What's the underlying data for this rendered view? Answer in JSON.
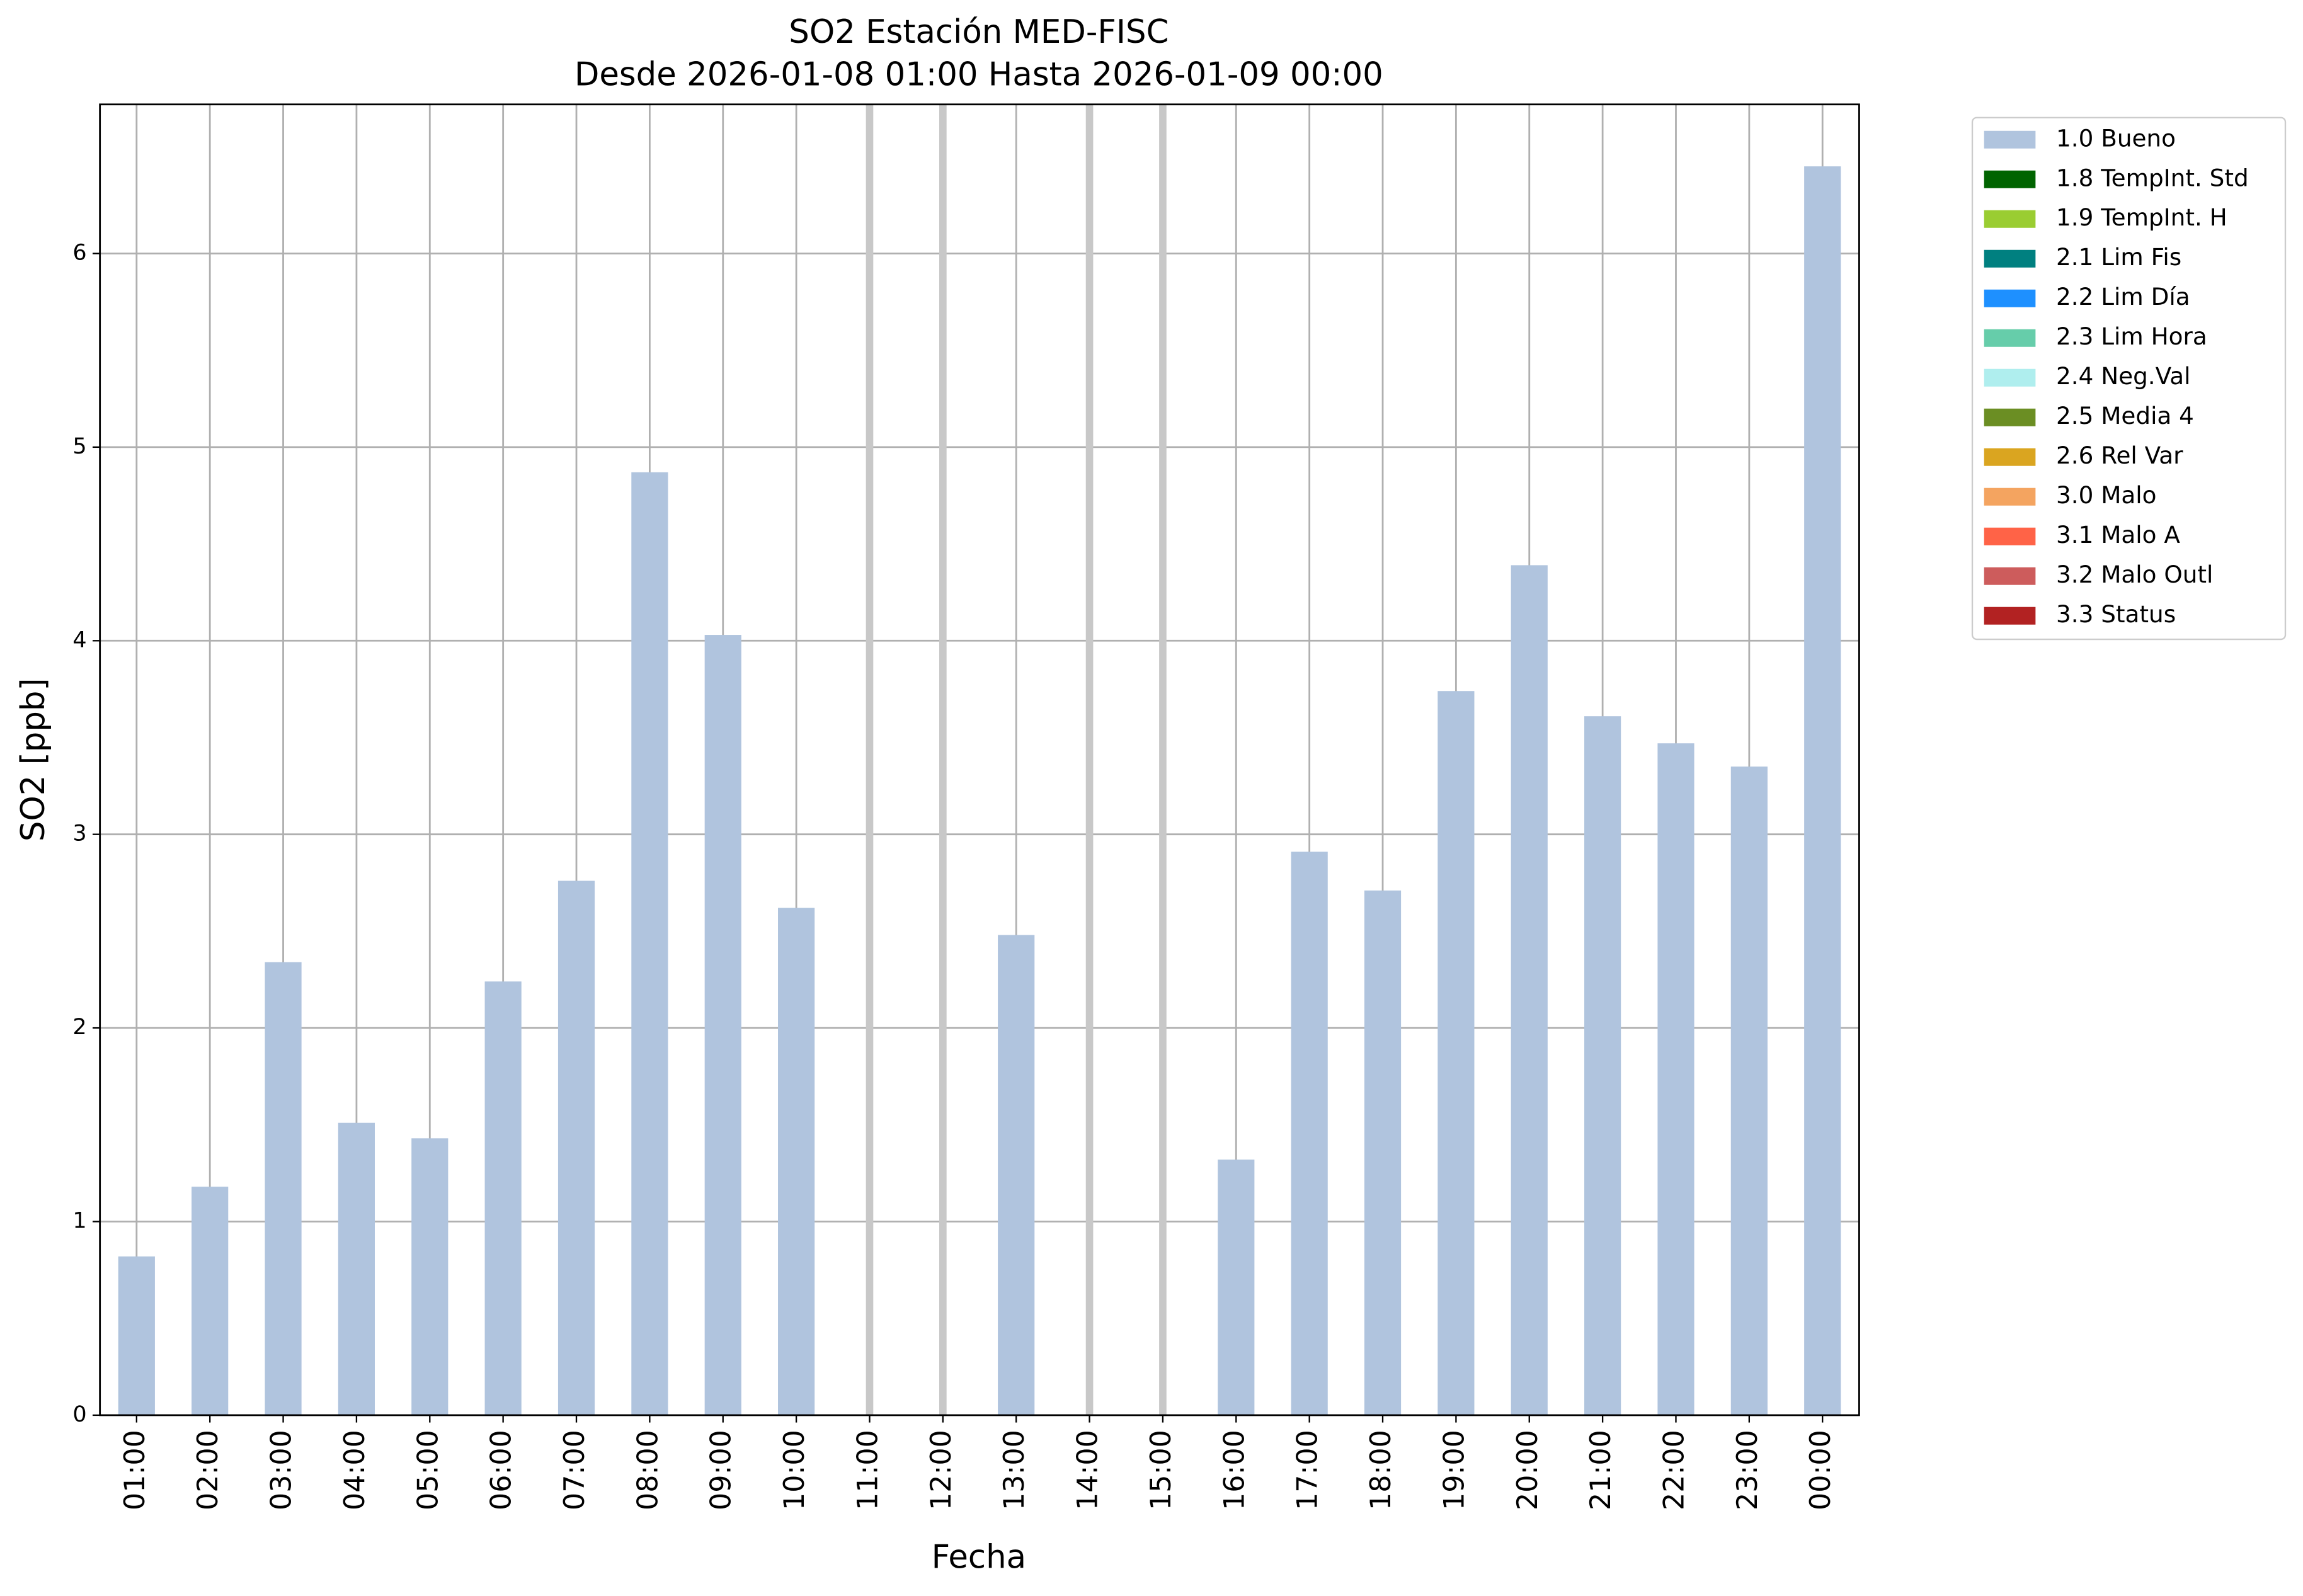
{
  "chart_data": {
    "type": "bar",
    "title": "SO2 Estación MED-FISC",
    "subtitle": "Desde 2026-01-08 01:00 Hasta 2026-01-09 00:00",
    "x_label": "Fecha",
    "y_label": "SO2 [ppb]",
    "categories": [
      "01:00",
      "02:00",
      "03:00",
      "04:00",
      "05:00",
      "06:00",
      "07:00",
      "08:00",
      "09:00",
      "10:00",
      "11:00",
      "12:00",
      "13:00",
      "14:00",
      "15:00",
      "16:00",
      "17:00",
      "18:00",
      "19:00",
      "20:00",
      "21:00",
      "22:00",
      "23:00",
      "00:00"
    ],
    "series": [
      {
        "name": "1.0 Bueno",
        "color": "#b0c4de",
        "values": [
          0.82,
          1.18,
          2.34,
          1.51,
          1.43,
          2.24,
          2.76,
          4.87,
          4.03,
          2.62,
          null,
          null,
          2.48,
          null,
          null,
          1.32,
          2.91,
          2.71,
          3.74,
          4.39,
          3.61,
          3.47,
          3.35,
          6.45
        ]
      }
    ],
    "legend_entries": [
      {
        "name": "1.8 TempInt. Std",
        "color": "#006400"
      },
      {
        "name": "1.9 TempInt. H",
        "color": "#9acd32"
      },
      {
        "name": "2.1 Lim Fis",
        "color": "#008080"
      },
      {
        "name": "2.2 Lim Día",
        "color": "#1e90ff"
      },
      {
        "name": "2.3 Lim Hora",
        "color": "#66cdaa"
      },
      {
        "name": "2.4 Neg.Val",
        "color": "#afeeee"
      },
      {
        "name": "2.5 Media 4",
        "color": "#6b8e23"
      },
      {
        "name": "2.6 Rel Var",
        "color": "#daa520"
      },
      {
        "name": "3.0 Malo",
        "color": "#f4a460"
      },
      {
        "name": "3.1 Malo A",
        "color": "#ff6347"
      },
      {
        "name": "3.2 Malo Outl",
        "color": "#cd5c5c"
      },
      {
        "name": "3.3 Status",
        "color": "#b22222"
      }
    ],
    "ylim": [
      0,
      6.77
    ],
    "yticks": [
      0,
      1,
      2,
      3,
      4,
      5,
      6
    ],
    "grid": true,
    "legend_position": "outside-upper-right"
  }
}
